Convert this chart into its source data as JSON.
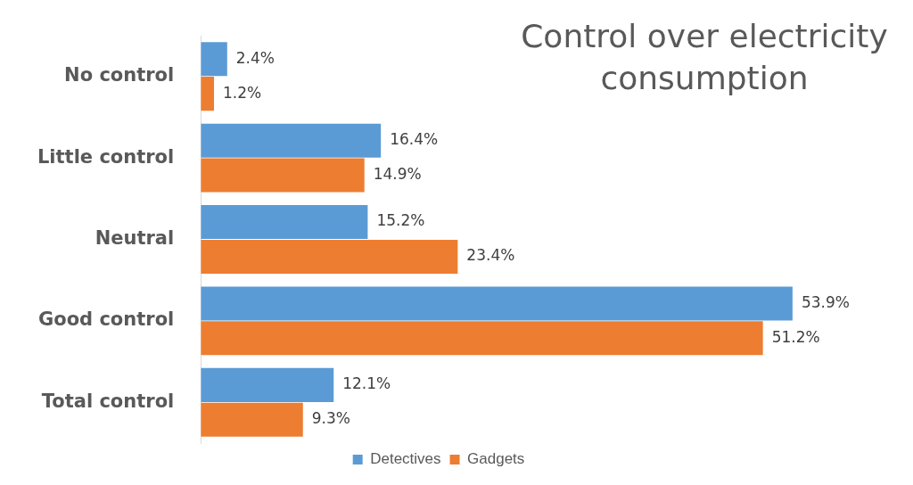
{
  "chart_data": {
    "type": "bar",
    "orientation": "horizontal",
    "title": "Control over electricity consumption",
    "categories": [
      "No control",
      "Little control",
      "Neutral",
      "Good control",
      "Total control"
    ],
    "series": [
      {
        "name": "Detectives",
        "color": "#5b9bd5",
        "values": [
          2.4,
          16.4,
          15.2,
          53.9,
          12.1
        ],
        "value_labels": [
          "2.4%",
          "16.4%",
          "15.2%",
          "53.9%",
          "12.1%"
        ]
      },
      {
        "name": "Gadgets",
        "color": "#ed7d31",
        "values": [
          1.2,
          14.9,
          23.4,
          51.2,
          9.3
        ],
        "value_labels": [
          "1.2%",
          "14.9%",
          "23.4%",
          "51.2%",
          "9.3%"
        ]
      }
    ],
    "legend": "bottom"
  }
}
